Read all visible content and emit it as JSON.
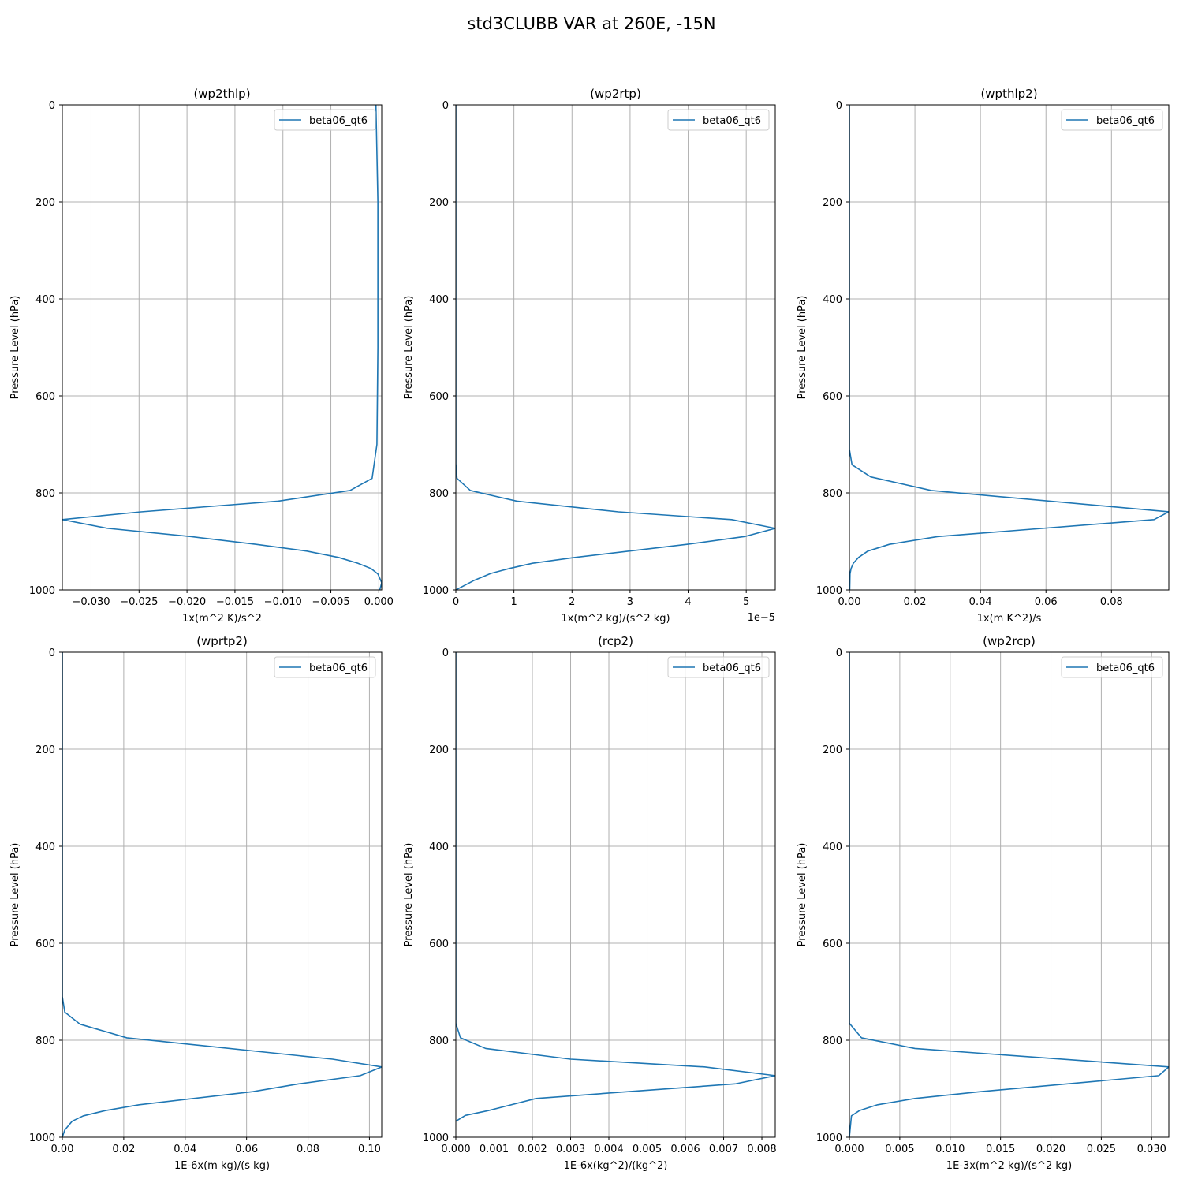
{
  "figure": {
    "title": "std3CLUBB VAR at 260E, -15N"
  },
  "style": {
    "line_color": "#1f77b4",
    "grid_color": "#b0b0b0",
    "axis_color": "#000000"
  },
  "chart_data": [
    {
      "type": "line",
      "title": "(wp2thlp)",
      "xlabel": "1x(m^2 K)/s^2",
      "ylabel": "Pressure Level (hPa)",
      "offset_label": "",
      "xlim": [
        -0.033,
        0.0003
      ],
      "ylim": [
        1000,
        0
      ],
      "xticks": [
        -0.03,
        -0.025,
        -0.02,
        -0.015,
        -0.01,
        -0.005,
        0.0
      ],
      "xtick_labels": [
        "−0.030",
        "−0.025",
        "−0.020",
        "−0.015",
        "−0.010",
        "−0.005",
        "0.000"
      ],
      "yticks": [
        0,
        200,
        400,
        600,
        800,
        1000
      ],
      "ytick_labels": [
        "0",
        "200",
        "400",
        "600",
        "800",
        "1000"
      ],
      "grid": true,
      "legend": {
        "position": "upper right",
        "entries": [
          "beta06_qt6"
        ]
      },
      "series": [
        {
          "name": "beta06_qt6",
          "x": [
            -0.0003,
            -0.0002,
            -0.0001,
            -0.0001,
            -0.0001,
            -0.0002,
            -0.0007,
            -0.003,
            -0.0105,
            -0.0248,
            -0.033,
            -0.0283,
            -0.0196,
            -0.0128,
            -0.0075,
            -0.0042,
            -0.0022,
            -0.0008,
            -0.0001,
            0.0003,
            0.0001
          ],
          "y": [
            0,
            100,
            200,
            300,
            500,
            700,
            770,
            795,
            817,
            839,
            855,
            873,
            890,
            906,
            920,
            933,
            945,
            956,
            967,
            985,
            1000
          ]
        }
      ]
    },
    {
      "type": "line",
      "title": "(wp2rtp)",
      "xlabel": "1x(m^2 kg)/(s^2 kg)",
      "ylabel": "Pressure Level (hPa)",
      "offset_label": "1e−5",
      "xlim": [
        0,
        5.5
      ],
      "ylim": [
        1000,
        0
      ],
      "xticks": [
        0,
        1,
        2,
        3,
        4,
        5
      ],
      "xtick_labels": [
        "0",
        "1",
        "2",
        "3",
        "4",
        "5"
      ],
      "yticks": [
        0,
        200,
        400,
        600,
        800,
        1000
      ],
      "ytick_labels": [
        "0",
        "200",
        "400",
        "600",
        "800",
        "1000"
      ],
      "grid": true,
      "legend": {
        "position": "upper right",
        "entries": [
          "beta06_qt6"
        ]
      },
      "series": [
        {
          "name": "beta06_qt6",
          "x": [
            0.0,
            0.0,
            0.02,
            0.25,
            1.05,
            2.8,
            4.75,
            5.5,
            4.97,
            3.98,
            2.05,
            1.32,
            0.95,
            0.6,
            0.32,
            0.0
          ],
          "y": [
            0,
            740,
            770,
            795,
            817,
            839,
            855,
            873,
            890,
            906,
            933,
            945,
            955,
            966,
            980,
            1000
          ]
        }
      ]
    },
    {
      "type": "line",
      "title": "(wpthlp2)",
      "xlabel": "1x(m K^2)/s",
      "ylabel": "Pressure Level (hPa)",
      "offset_label": "",
      "xlim": [
        0,
        0.0975
      ],
      "ylim": [
        1000,
        0
      ],
      "xticks": [
        0.0,
        0.02,
        0.04,
        0.06,
        0.08
      ],
      "xtick_labels": [
        "0.00",
        "0.02",
        "0.04",
        "0.06",
        "0.08"
      ],
      "yticks": [
        0,
        200,
        400,
        600,
        800,
        1000
      ],
      "ytick_labels": [
        "0",
        "200",
        "400",
        "600",
        "800",
        "1000"
      ],
      "grid": true,
      "legend": {
        "position": "upper right",
        "entries": [
          "beta06_qt6"
        ]
      },
      "series": [
        {
          "name": "beta06_qt6",
          "x": [
            0.0,
            0.0,
            0.0008,
            0.0065,
            0.025,
            0.0975,
            0.093,
            0.027,
            0.0122,
            0.0056,
            0.0028,
            0.0012,
            0.0005,
            0.0002,
            0.0001
          ],
          "y": [
            0,
            710,
            742,
            767,
            795,
            839,
            855,
            890,
            906,
            920,
            933,
            945,
            956,
            967,
            1000
          ]
        }
      ]
    },
    {
      "type": "line",
      "title": "(wprtp2)",
      "xlabel": "1E-6x(m kg)/(s kg)",
      "ylabel": "Pressure Level (hPa)",
      "offset_label": "",
      "xlim": [
        0,
        0.104
      ],
      "ylim": [
        1000,
        0
      ],
      "xticks": [
        0.0,
        0.02,
        0.04,
        0.06,
        0.08,
        0.1
      ],
      "xtick_labels": [
        "0.00",
        "0.02",
        "0.04",
        "0.06",
        "0.08",
        "0.10"
      ],
      "yticks": [
        0,
        200,
        400,
        600,
        800,
        1000
      ],
      "ytick_labels": [
        "0",
        "200",
        "400",
        "600",
        "800",
        "1000"
      ],
      "grid": true,
      "legend": {
        "position": "upper right",
        "entries": [
          "beta06_qt6"
        ]
      },
      "series": [
        {
          "name": "beta06_qt6",
          "x": [
            0.0,
            0.0,
            0.0008,
            0.0058,
            0.021,
            0.088,
            0.104,
            0.097,
            0.077,
            0.062,
            0.025,
            0.014,
            0.0068,
            0.0032,
            0.0008,
            0.0
          ],
          "y": [
            0,
            710,
            742,
            767,
            795,
            839,
            855,
            873,
            890,
            906,
            933,
            945,
            956,
            967,
            985,
            1000
          ]
        }
      ]
    },
    {
      "type": "line",
      "title": "(rcp2)",
      "xlabel": "1E-6x(kg^2)/(kg^2)",
      "ylabel": "Pressure Level (hPa)",
      "offset_label": "",
      "xlim": [
        0,
        0.00835
      ],
      "ylim": [
        1000,
        0
      ],
      "xticks": [
        0.0,
        0.001,
        0.002,
        0.003,
        0.004,
        0.005,
        0.006,
        0.007,
        0.008
      ],
      "xtick_labels": [
        "0.000",
        "0.001",
        "0.002",
        "0.003",
        "0.004",
        "0.005",
        "0.006",
        "0.007",
        "0.008"
      ],
      "yticks": [
        0,
        200,
        400,
        600,
        800,
        1000
      ],
      "ytick_labels": [
        "0",
        "200",
        "400",
        "600",
        "800",
        "1000"
      ],
      "grid": true,
      "legend": {
        "position": "upper right",
        "entries": [
          "beta06_qt6"
        ]
      },
      "series": [
        {
          "name": "beta06_qt6",
          "x": [
            0.0,
            0.0,
            0.00012,
            0.00078,
            0.003,
            0.0065,
            0.00835,
            0.0073,
            0.0045,
            0.0021,
            0.00085,
            0.00025,
            0.0
          ],
          "y": [
            0,
            765,
            795,
            817,
            839,
            855,
            873,
            890,
            906,
            920,
            945,
            955,
            967
          ]
        }
      ]
    },
    {
      "type": "line",
      "title": "(wp2rcp)",
      "xlabel": "1E-3x(m^2 kg)/(s^2 kg)",
      "ylabel": "Pressure Level (hPa)",
      "offset_label": "",
      "xlim": [
        0,
        0.0317
      ],
      "ylim": [
        1000,
        0
      ],
      "xticks": [
        0.0,
        0.005,
        0.01,
        0.015,
        0.02,
        0.025,
        0.03
      ],
      "xtick_labels": [
        "0.000",
        "0.005",
        "0.010",
        "0.015",
        "0.020",
        "0.025",
        "0.030"
      ],
      "yticks": [
        0,
        200,
        400,
        600,
        800,
        1000
      ],
      "ytick_labels": [
        "0",
        "200",
        "400",
        "600",
        "800",
        "1000"
      ],
      "grid": true,
      "legend": {
        "position": "upper right",
        "entries": [
          "beta06_qt6"
        ]
      },
      "series": [
        {
          "name": "beta06_qt6",
          "x": [
            0.0,
            0.0,
            0.0012,
            0.0065,
            0.0317,
            0.0307,
            0.013,
            0.0065,
            0.0028,
            0.001,
            0.0002,
            0.0
          ],
          "y": [
            0,
            765,
            795,
            817,
            855,
            873,
            906,
            920,
            933,
            945,
            956,
            1000
          ]
        }
      ]
    }
  ]
}
